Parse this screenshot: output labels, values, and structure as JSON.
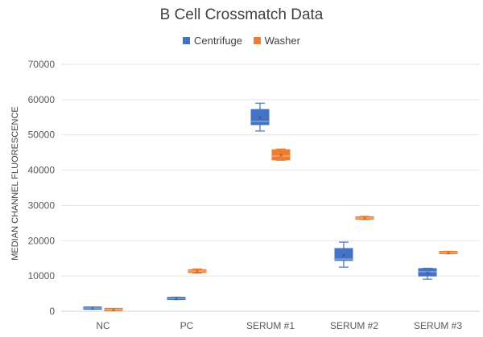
{
  "chart_data": {
    "type": "box",
    "title": "B Cell Crossmatch Data",
    "xlabel": "",
    "ylabel": "MEDIAN CHANNEL FLUORESCENCE",
    "ylim": [
      0,
      70000
    ],
    "yticks": [
      0,
      10000,
      20000,
      30000,
      40000,
      50000,
      60000,
      70000
    ],
    "ytick_labels": [
      "0",
      "10000",
      "20000",
      "30000",
      "40000",
      "50000",
      "60000",
      "70000"
    ],
    "grid": true,
    "legend_position": "top",
    "categories": [
      "NC",
      "PC",
      "SERUM #1",
      "SERUM #2",
      "SERUM #3"
    ],
    "series": [
      {
        "name": "Centrifuge",
        "color": "#4472C4",
        "boxes": [
          {
            "min": 700,
            "q1": 800,
            "median": 900,
            "q3": 1000,
            "max": 1100,
            "mean": 900
          },
          {
            "min": 3300,
            "q1": 3450,
            "median": 3650,
            "q3": 3850,
            "max": 4000,
            "mean": 3650
          },
          {
            "min": 51100,
            "q1": 52900,
            "median": 53800,
            "q3": 57200,
            "max": 59000,
            "mean": 55000
          },
          {
            "min": 12500,
            "q1": 14400,
            "median": 14800,
            "q3": 17800,
            "max": 19600,
            "mean": 16000
          },
          {
            "min": 9100,
            "q1": 10000,
            "median": 11200,
            "q3": 12100,
            "max": 12200,
            "mean": 11000
          }
        ]
      },
      {
        "name": "Washer",
        "color": "#ED7D31",
        "boxes": [
          {
            "min": 300,
            "q1": 400,
            "median": 500,
            "q3": 600,
            "max": 700,
            "mean": 500
          },
          {
            "min": 10800,
            "q1": 11000,
            "median": 11400,
            "q3": 11800,
            "max": 12000,
            "mean": 11400
          },
          {
            "min": 42800,
            "q1": 42900,
            "median": 44000,
            "q3": 45800,
            "max": 46000,
            "mean": 44300
          },
          {
            "min": 26000,
            "q1": 26200,
            "median": 26450,
            "q3": 26700,
            "max": 26900,
            "mean": 26450
          },
          {
            "min": 16300,
            "q1": 16450,
            "median": 16650,
            "q3": 16850,
            "max": 17000,
            "mean": 16650
          }
        ]
      }
    ]
  }
}
